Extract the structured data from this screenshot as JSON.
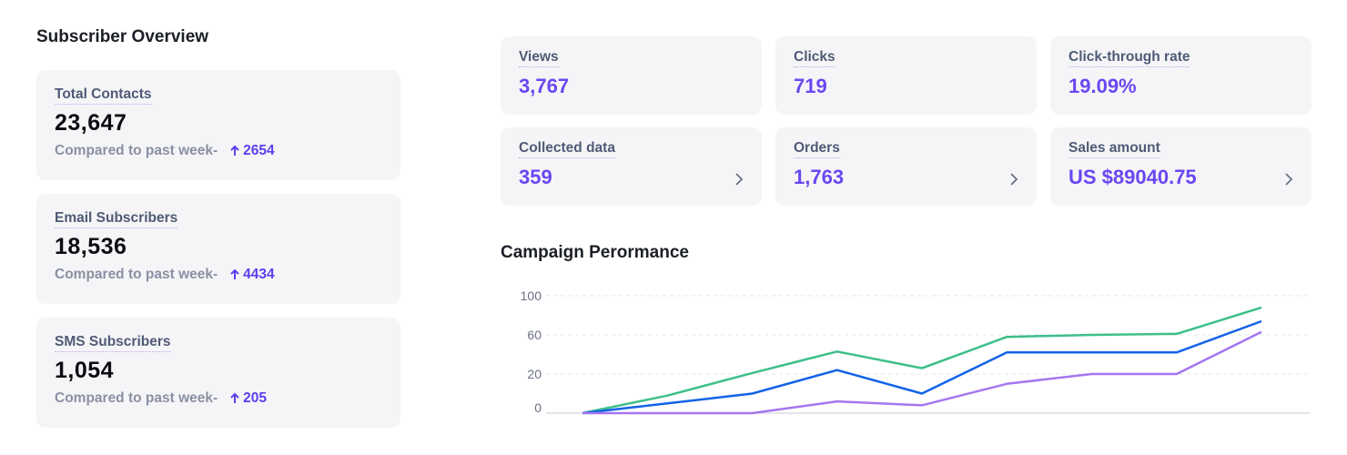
{
  "overview": {
    "title": "Subscriber Overview",
    "cards": [
      {
        "label": "Total Contacts",
        "value": "23,647",
        "compare": "Compared to past week-",
        "delta": "2654"
      },
      {
        "label": "Email Subscribers",
        "value": "18,536",
        "compare": "Compared to past week-",
        "delta": "4434"
      },
      {
        "label": "SMS Subscribers",
        "value": "1,054",
        "compare": "Compared to past week-",
        "delta": "205"
      }
    ]
  },
  "kpis": [
    {
      "label": "Views",
      "value": "3,767"
    },
    {
      "label": "Clicks",
      "value": "719"
    },
    {
      "label": "Click-through rate",
      "value": "19.09%"
    },
    {
      "label": "Collected data",
      "value": "359"
    },
    {
      "label": "Orders",
      "value": "1,763"
    },
    {
      "label": "Sales amount",
      "value": "US $89040.75"
    }
  ],
  "icons": {
    "delta": "arrow-up-icon",
    "kpi_link": "chevron-right-icon"
  },
  "colors": {
    "accent": "#6a47f2",
    "card_bg": "#f5f5f7"
  },
  "chart_data": {
    "type": "line",
    "title": "Campaign Perormance",
    "xlabel": "",
    "ylabel": "",
    "yticks": [
      0,
      20,
      60,
      100
    ],
    "x": [
      0,
      1,
      2,
      3,
      4,
      5,
      6,
      7,
      8
    ],
    "grid": true,
    "legend": "none",
    "series": [
      {
        "color": "#3dbf8a",
        "values": [
          0,
          9,
          21,
          43,
          26,
          58,
          60,
          61,
          88
        ]
      },
      {
        "color": "#1363e8",
        "values": [
          0,
          5,
          10,
          24,
          10,
          42,
          42,
          42,
          74
        ]
      },
      {
        "color": "#a476f0",
        "values": [
          0,
          0,
          0,
          6,
          4,
          15,
          20,
          20,
          63
        ]
      }
    ]
  }
}
